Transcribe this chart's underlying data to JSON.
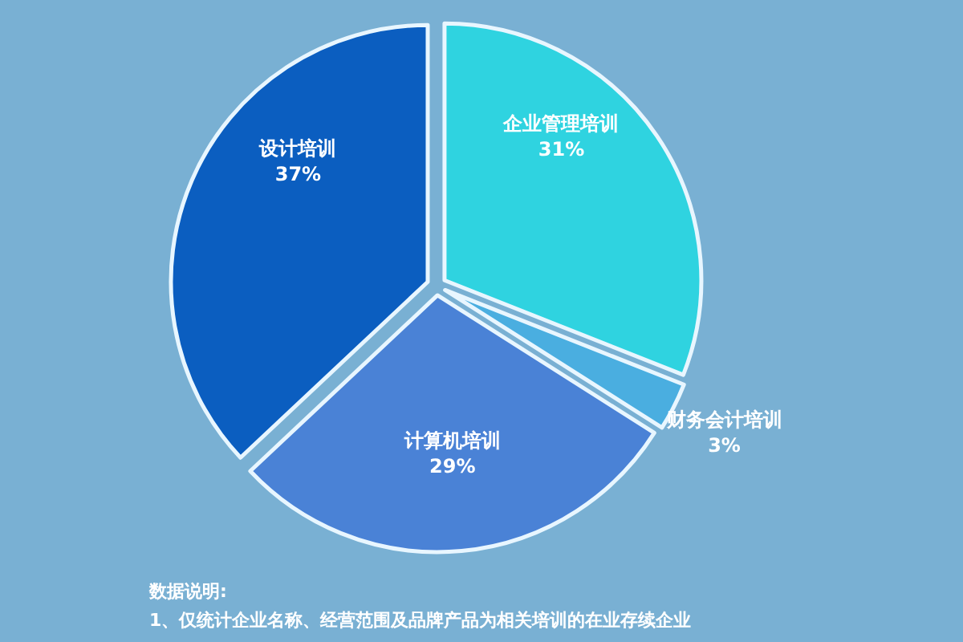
{
  "chart_data": {
    "type": "pie",
    "categories": [
      "企业管理培训",
      "财务会计培训",
      "计算机培训",
      "设计培训"
    ],
    "values": [
      31,
      3,
      29,
      37
    ],
    "value_labels": [
      "31%",
      "3%",
      "29%",
      "37%"
    ],
    "colors": [
      "#2fd3e0",
      "#4aaee0",
      "#4a82d6",
      "#0b5ec0"
    ],
    "annotations": [
      "数据说明:",
      "1、仅统计企业名称、经营范围及品牌产品为相关培训的在业存续企业"
    ]
  }
}
